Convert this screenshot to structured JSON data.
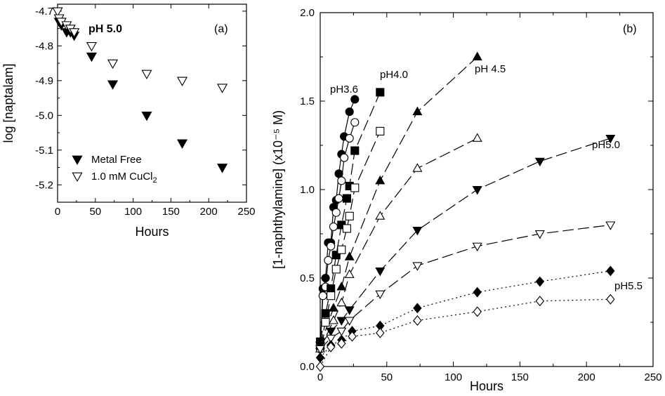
{
  "chart_data": [
    {
      "type": "scatter",
      "panel_label": "(a)",
      "title": "pH 5.0",
      "xlabel": "Hours",
      "ylabel": "log [naptalam]",
      "xlim": [
        0,
        250
      ],
      "ylim": [
        -5.25,
        -4.68
      ],
      "x_ticks": [
        "0",
        "50",
        "100",
        "150",
        "200",
        "250"
      ],
      "y_ticks": [
        "-4.7",
        "-4.8",
        "-4.9",
        "-5.0",
        "-5.1",
        "-5.2"
      ],
      "legend_position": "lower-left",
      "series": [
        {
          "name": "Metal Free",
          "marker": "triangle-down-filled",
          "x": [
            2,
            5,
            12,
            17,
            22,
            45,
            73,
            118,
            165,
            218
          ],
          "y": [
            -4.73,
            -4.74,
            -4.76,
            -4.76,
            -4.77,
            -4.83,
            -4.91,
            -5.0,
            -5.08,
            -5.15
          ]
        },
        {
          "name": "1.0 mM CuCl2",
          "marker": "triangle-down-open",
          "x": [
            0,
            2,
            5,
            12,
            17,
            22,
            45,
            73,
            118,
            165,
            218
          ],
          "y": [
            -4.7,
            -4.72,
            -4.73,
            -4.74,
            -4.75,
            -4.76,
            -4.8,
            -4.85,
            -4.88,
            -4.9,
            -4.92
          ]
        }
      ],
      "legend_labels": {
        "metal_free": "Metal Free",
        "cucl_main": "1.0 mM CuCl",
        "cucl_sub": "2"
      }
    },
    {
      "type": "line",
      "panel_label": "(b)",
      "xlabel": "Hours",
      "ylabel": "[1-naphthylamine] (x10⁻⁵ M)",
      "xlim": [
        0,
        250
      ],
      "ylim": [
        0,
        2.0
      ],
      "x_ticks": [
        "0",
        "50",
        "100",
        "150",
        "200",
        "250"
      ],
      "y_ticks": [
        "0.0",
        "0.5",
        "1.0",
        "1.5",
        "2.0"
      ],
      "series": [
        {
          "name": "pH3.6",
          "marker": "circle-filled",
          "line": "solid",
          "x": [
            0,
            2,
            4,
            6,
            8,
            10,
            12,
            14,
            16,
            18,
            22,
            26
          ],
          "y": [
            0.1,
            0.44,
            0.5,
            0.7,
            0.7,
            0.9,
            0.94,
            1.09,
            1.2,
            1.3,
            1.44,
            1.51
          ]
        },
        {
          "name": "",
          "marker": "circle-open",
          "line": "solid",
          "x": [
            0,
            2,
            4,
            6,
            8,
            10,
            12,
            14,
            16,
            18,
            22,
            26
          ],
          "y": [
            0.1,
            0.4,
            0.45,
            0.6,
            0.68,
            0.79,
            0.87,
            0.95,
            1.05,
            1.18,
            1.29,
            1.38
          ]
        },
        {
          "name": "pH4.0",
          "marker": "square-filled",
          "line": "long-dash",
          "x": [
            0,
            4,
            8,
            12,
            16,
            20,
            22,
            26,
            45
          ],
          "y": [
            0.14,
            0.3,
            0.44,
            0.63,
            0.8,
            0.95,
            1.02,
            1.22,
            1.55
          ]
        },
        {
          "name": "",
          "marker": "square-open",
          "line": "long-dash",
          "x": [
            0,
            4,
            8,
            12,
            16,
            20,
            22,
            26,
            45
          ],
          "y": [
            0.12,
            0.25,
            0.4,
            0.55,
            0.66,
            0.78,
            0.85,
            1.01,
            1.33
          ]
        },
        {
          "name": "pH 4.5",
          "marker": "triangle-up-filled",
          "line": "long-dash",
          "x": [
            0,
            10,
            16,
            22,
            45,
            73,
            118
          ],
          "y": [
            0.12,
            0.33,
            0.45,
            0.62,
            1.05,
            1.44,
            1.75
          ]
        },
        {
          "name": "",
          "marker": "triangle-up-open",
          "line": "long-dash",
          "x": [
            0,
            10,
            16,
            22,
            45,
            73,
            118
          ],
          "y": [
            0.1,
            0.26,
            0.36,
            0.52,
            0.85,
            1.12,
            1.29
          ]
        },
        {
          "name": "pH5.0",
          "marker": "triangle-down-filled",
          "line": "long-dash",
          "x": [
            0,
            8,
            16,
            22,
            45,
            73,
            118,
            165,
            218
          ],
          "y": [
            0.12,
            0.2,
            0.26,
            0.32,
            0.54,
            0.77,
            1.0,
            1.16,
            1.29
          ]
        },
        {
          "name": "",
          "marker": "triangle-down-open",
          "line": "long-dash",
          "x": [
            0,
            8,
            16,
            22,
            45,
            73,
            118,
            165,
            218
          ],
          "y": [
            0.1,
            0.16,
            0.2,
            0.26,
            0.41,
            0.57,
            0.68,
            0.75,
            0.8
          ]
        },
        {
          "name": "pH5.5",
          "marker": "diamond-filled",
          "line": "dotted",
          "x": [
            0,
            8,
            16,
            24,
            45,
            73,
            118,
            165,
            218
          ],
          "y": [
            0.05,
            0.12,
            0.15,
            0.2,
            0.23,
            0.33,
            0.42,
            0.48,
            0.54
          ]
        },
        {
          "name": "",
          "marker": "diamond-open",
          "line": "dotted",
          "x": [
            0,
            8,
            16,
            24,
            45,
            73,
            118,
            165,
            218
          ],
          "y": [
            0.0,
            0.11,
            0.13,
            0.17,
            0.19,
            0.26,
            0.31,
            0.37,
            0.38
          ]
        }
      ]
    }
  ]
}
